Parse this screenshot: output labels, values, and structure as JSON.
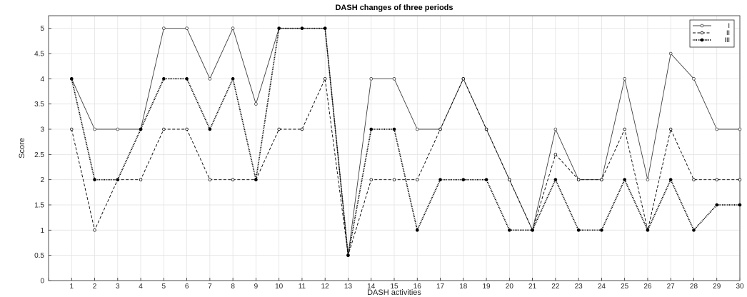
{
  "chart_data": {
    "type": "line",
    "title": "DASH changes of three periods",
    "xlabel": "DASH activities",
    "ylabel": "Score",
    "x": [
      1,
      2,
      3,
      4,
      5,
      6,
      7,
      8,
      9,
      10,
      11,
      12,
      13,
      14,
      15,
      16,
      17,
      18,
      19,
      20,
      21,
      22,
      23,
      24,
      25,
      26,
      27,
      28,
      29,
      30
    ],
    "xlim": [
      0,
      30
    ],
    "ylim": [
      0,
      5.25
    ],
    "yticks": [
      0,
      0.5,
      1,
      1.5,
      2,
      2.5,
      3,
      3.5,
      4,
      4.5,
      5
    ],
    "grid": true,
    "legend_position": "top-right",
    "series": [
      {
        "name": "I",
        "line_style": "solid",
        "color": "#404040",
        "values": [
          4,
          3,
          3,
          3,
          5,
          5,
          4,
          5,
          3.5,
          5,
          5,
          5,
          0.5,
          4,
          4,
          3,
          3,
          4,
          3,
          2,
          1,
          3,
          2,
          2,
          4,
          2,
          4.5,
          4,
          3,
          3
        ]
      },
      {
        "name": "II",
        "line_style": "dashed",
        "color": "#000000",
        "values": [
          3,
          1,
          2,
          2,
          3,
          3,
          2,
          2,
          2,
          3,
          3,
          4,
          0.5,
          2,
          2,
          2,
          3,
          4,
          3,
          2,
          1,
          2.5,
          2,
          2,
          3,
          1,
          3,
          2,
          2,
          2
        ]
      },
      {
        "name": "III",
        "line_style": "dotted",
        "color": "#000000",
        "values": [
          4,
          2,
          2,
          3,
          4,
          4,
          3,
          4,
          2,
          5,
          5,
          5,
          0.5,
          3,
          3,
          1,
          2,
          2,
          2,
          1,
          1,
          2,
          1,
          1,
          2,
          1,
          2,
          1,
          1.5,
          1.5
        ]
      }
    ]
  }
}
